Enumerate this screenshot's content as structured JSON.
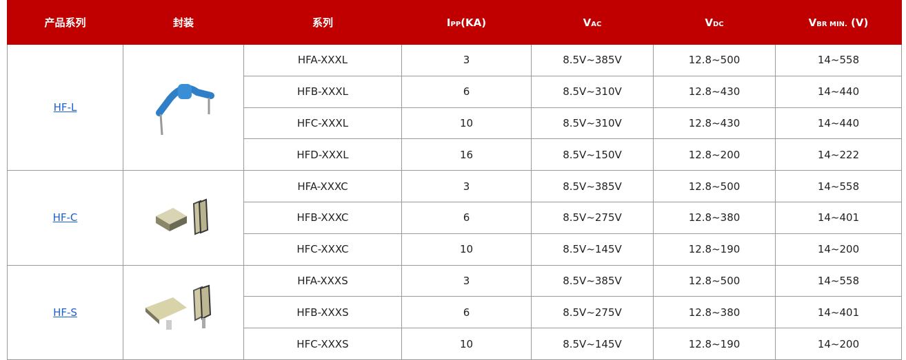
{
  "header": [
    {
      "text": "产品系列"
    },
    {
      "text": "封装"
    },
    {
      "text": "系列"
    },
    {
      "main": "I",
      "sub": "PP",
      "rest": "(KA)"
    },
    {
      "main": "V",
      "sub": "AC"
    },
    {
      "main": "V",
      "sub": "DC"
    },
    {
      "main": "V",
      "sub": "BR MIN.",
      "rest": " (V)"
    }
  ],
  "groups": [
    {
      "name": "HF-L",
      "rows": [
        [
          "HFA-XXXL",
          "3",
          "8.5V~385V",
          "12.8~500",
          "14~558"
        ],
        [
          "HFB-XXXL",
          "6",
          "8.5V~310V",
          "12.8~430",
          "14~440"
        ],
        [
          "HFC-XXXL",
          "10",
          "8.5V~310V",
          "12.8~430",
          "14~440"
        ],
        [
          "HFD-XXXL",
          "16",
          "8.5V~150V",
          "12.8~200",
          "14~222"
        ]
      ]
    },
    {
      "name": "HF-C",
      "rows": [
        [
          "HFA-XXXC",
          "3",
          "8.5V~385V",
          "12.8~500",
          "14~558"
        ],
        [
          "HFB-XXXC",
          "6",
          "8.5V~275V",
          "12.8~380",
          "14~401"
        ],
        [
          "HFC-XXXC",
          "10",
          "8.5V~145V",
          "12.8~190",
          "14~200"
        ]
      ]
    },
    {
      "name": "HF-S",
      "rows": [
        [
          "HFA-XXXS",
          "3",
          "8.5V~385V",
          "12.8~500",
          "14~558"
        ],
        [
          "HFB-XXXS",
          "6",
          "8.5V~275V",
          "12.8~380",
          "14~401"
        ],
        [
          "HFC-XXXS",
          "10",
          "8.5V~145V",
          "12.8~190",
          "14~200"
        ]
      ]
    }
  ]
}
